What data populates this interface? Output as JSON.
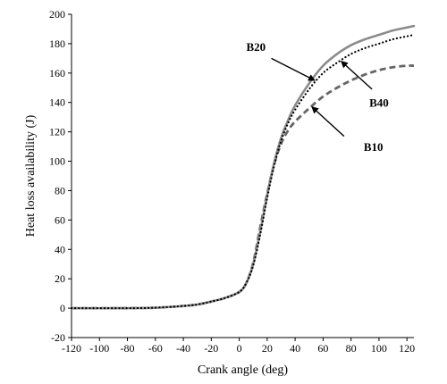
{
  "chart_data": {
    "type": "line",
    "title": "",
    "xlabel": "Crank angle (deg)",
    "ylabel": "Heat loss availability (J)",
    "xlim": [
      -120,
      125
    ],
    "ylim": [
      -20,
      200
    ],
    "xticks": [
      -120,
      -100,
      -80,
      -60,
      -40,
      -20,
      0,
      20,
      40,
      60,
      80,
      100,
      120
    ],
    "yticks": [
      -20,
      0,
      20,
      40,
      60,
      80,
      100,
      120,
      140,
      160,
      180,
      200
    ],
    "grid": false,
    "legend": "none",
    "series": [
      {
        "name": "B20",
        "color": "#8c8c8c",
        "style": "solid",
        "x": [
          -120,
          -80,
          -60,
          -40,
          -30,
          -20,
          -10,
          0,
          5,
          10,
          15,
          20,
          25,
          30,
          35,
          40,
          50,
          60,
          70,
          80,
          90,
          100,
          110,
          120,
          125
        ],
        "y": [
          0,
          0,
          0.3,
          1.5,
          2.5,
          4.5,
          7,
          11,
          17,
          30,
          52,
          77,
          99,
          116,
          128,
          138,
          153,
          165,
          173,
          179,
          183,
          186,
          189,
          191,
          192
        ]
      },
      {
        "name": "B40",
        "color": "#000000",
        "style": "dotted",
        "x": [
          -120,
          -80,
          -60,
          -40,
          -30,
          -20,
          -10,
          0,
          5,
          10,
          15,
          20,
          25,
          30,
          35,
          40,
          50,
          60,
          70,
          80,
          90,
          100,
          110,
          120,
          125
        ],
        "y": [
          0,
          0,
          0.3,
          1.5,
          2.5,
          4.5,
          7,
          11,
          17,
          29,
          50,
          75,
          97,
          114,
          126,
          135,
          149,
          160,
          167,
          173,
          177,
          180,
          183,
          185,
          186
        ]
      },
      {
        "name": "B10",
        "color": "#666666",
        "style": "dashed",
        "x": [
          -120,
          -80,
          -60,
          -40,
          -30,
          -20,
          -10,
          0,
          5,
          10,
          15,
          20,
          25,
          30,
          35,
          40,
          50,
          60,
          70,
          80,
          90,
          100,
          110,
          120,
          125
        ],
        "y": [
          0,
          0,
          0.3,
          1.5,
          2.5,
          4.5,
          7,
          11,
          17,
          31,
          55,
          78,
          98,
          112,
          121,
          127,
          136,
          144,
          150,
          155,
          159,
          162,
          164,
          165,
          165
        ]
      }
    ],
    "annotations": [
      {
        "text": "B20",
        "series": "B20",
        "target": [
          54,
          155
        ],
        "text_at": [
          12,
          175
        ],
        "arrow_from": [
          23,
          170
        ]
      },
      {
        "text": "B40",
        "series": "B40",
        "target": [
          73,
          168
        ],
        "text_at": [
          100,
          137
        ],
        "arrow_from": [
          95,
          149
        ]
      },
      {
        "text": "B10",
        "series": "B10",
        "target": [
          52,
          137
        ],
        "text_at": [
          96,
          107
        ],
        "arrow_from": [
          75,
          117
        ]
      }
    ]
  }
}
